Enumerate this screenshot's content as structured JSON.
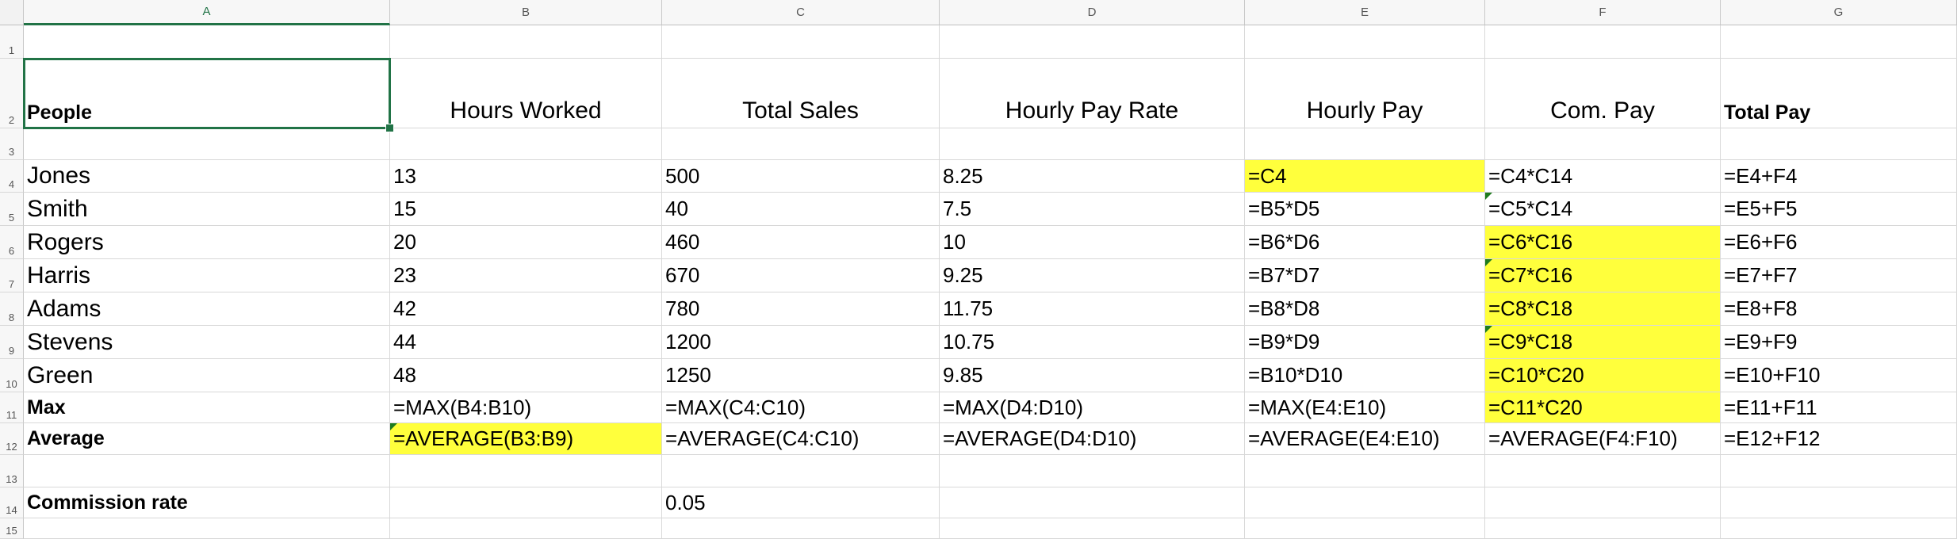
{
  "columns": [
    "A",
    "B",
    "C",
    "D",
    "E",
    "F",
    "G"
  ],
  "row_numbers": [
    "1",
    "2",
    "3",
    "4",
    "5",
    "6",
    "7",
    "8",
    "9",
    "10",
    "11",
    "12",
    "13",
    "14",
    "15"
  ],
  "headers": {
    "a2": "People",
    "b2": "Hours Worked",
    "c2": "Total Sales",
    "d2": "Hourly Pay Rate",
    "e2": "Hourly Pay",
    "f2": "Com. Pay",
    "g2": "Total Pay"
  },
  "rows": [
    {
      "name": "Jones",
      "hours": "13",
      "sales": "500",
      "rate": "8.25",
      "hourly": "=C4",
      "com": "=C4*C14",
      "total": "=E4+F4"
    },
    {
      "name": "Smith",
      "hours": "15",
      "sales": "40",
      "rate": "7.5",
      "hourly": "=B5*D5",
      "com": "=C5*C14",
      "total": "=E5+F5"
    },
    {
      "name": "Rogers",
      "hours": "20",
      "sales": "460",
      "rate": "10",
      "hourly": "=B6*D6",
      "com": "=C6*C16",
      "total": "=E6+F6"
    },
    {
      "name": "Harris",
      "hours": "23",
      "sales": "670",
      "rate": "9.25",
      "hourly": "=B7*D7",
      "com": "=C7*C16",
      "total": "=E7+F7"
    },
    {
      "name": "Adams",
      "hours": "42",
      "sales": "780",
      "rate": "11.75",
      "hourly": "=B8*D8",
      "com": "=C8*C18",
      "total": "=E8+F8"
    },
    {
      "name": "Stevens",
      "hours": "44",
      "sales": "1200",
      "rate": "10.75",
      "hourly": "=B9*D9",
      "com": "=C9*C18",
      "total": "=E9+F9"
    },
    {
      "name": "Green",
      "hours": "48",
      "sales": "1250",
      "rate": "9.85",
      "hourly": "=B10*D10",
      "com": "=C10*C20",
      "total": "=E10+F10"
    }
  ],
  "max_row": {
    "label": "Max",
    "hours": "=MAX(B4:B10)",
    "sales": "=MAX(C4:C10)",
    "rate": "=MAX(D4:D10)",
    "hourly": "=MAX(E4:E10)",
    "com": "=C11*C20",
    "total": "=E11+F11"
  },
  "avg_row": {
    "label": "Average",
    "hours": "=AVERAGE(B3:B9)",
    "sales": "=AVERAGE(C4:C10)",
    "rate": "=AVERAGE(D4:D10)",
    "hourly": "=AVERAGE(E4:E10)",
    "com": "=AVERAGE(F4:F10)",
    "total": "=E12+F12"
  },
  "commission": {
    "label": "Commission rate",
    "value": "0.05"
  },
  "colors": {
    "highlight": "#ffff3c",
    "selection": "#217346",
    "error_marker": "#1e7b1e"
  }
}
